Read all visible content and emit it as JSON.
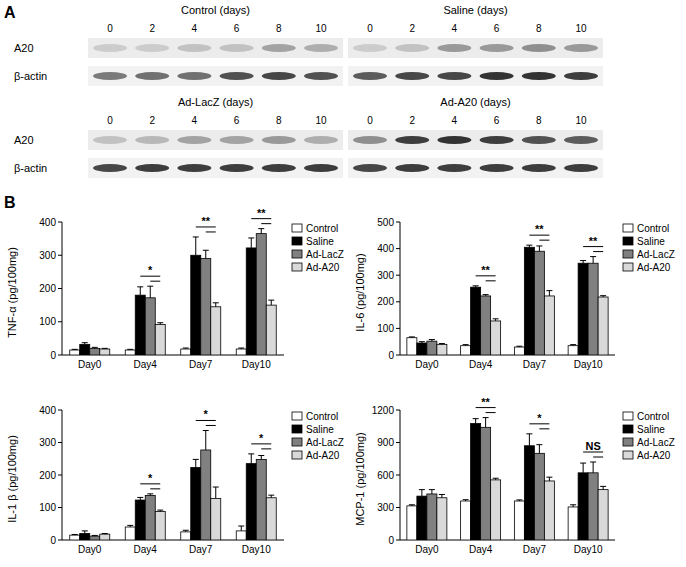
{
  "blots": {
    "panel_label": "A",
    "row_labels": [
      "A20",
      "β-actin"
    ],
    "panels": [
      {
        "title": "Control (days)",
        "days": [
          0,
          2,
          4,
          6,
          8,
          10
        ],
        "intensity": [
          [
            0.15,
            0.15,
            0.2,
            0.2,
            0.35,
            0.3
          ],
          [
            0.55,
            0.6,
            0.6,
            0.75,
            0.8,
            0.75
          ]
        ]
      },
      {
        "title": "Saline (days)",
        "days": [
          0,
          2,
          4,
          6,
          8,
          10
        ],
        "intensity": [
          [
            0.15,
            0.2,
            0.4,
            0.4,
            0.45,
            0.4
          ],
          [
            0.7,
            0.8,
            0.8,
            0.9,
            0.9,
            0.85
          ]
        ]
      },
      {
        "title": "Ad-LacZ (days)",
        "days": [
          0,
          2,
          4,
          6,
          8,
          10
        ],
        "intensity": [
          [
            0.2,
            0.25,
            0.35,
            0.35,
            0.4,
            0.3
          ],
          [
            0.8,
            0.85,
            0.85,
            0.85,
            0.85,
            0.85
          ]
        ]
      },
      {
        "title": "Ad-A20 (days)",
        "days": [
          0,
          2,
          4,
          6,
          8,
          10
        ],
        "intensity": [
          [
            0.45,
            0.85,
            0.9,
            0.85,
            0.75,
            0.7
          ],
          [
            0.8,
            0.85,
            0.85,
            0.85,
            0.85,
            0.85
          ]
        ]
      }
    ]
  },
  "charts_panel_label": "B",
  "chart_data": [
    {
      "type": "bar",
      "y_label": "TNF-α (pg/100mg)",
      "categories": [
        "Day0",
        "Day4",
        "Day7",
        "Day10"
      ],
      "ylim": [
        0,
        400
      ],
      "yticks": [
        0,
        100,
        200,
        300,
        400
      ],
      "legend": "right",
      "series": [
        {
          "name": "Control",
          "color": "#ffffff",
          "values": [
            15,
            15,
            18,
            18
          ],
          "errors": [
            2,
            2,
            3,
            3
          ]
        },
        {
          "name": "Saline",
          "color": "#000000",
          "values": [
            32,
            180,
            300,
            322
          ],
          "errors": [
            5,
            25,
            55,
            30
          ]
        },
        {
          "name": "Ad-LacZ",
          "color": "#808080",
          "values": [
            20,
            172,
            290,
            365
          ],
          "errors": [
            3,
            35,
            25,
            15
          ]
        },
        {
          "name": "Ad-A20",
          "color": "#d9d9d9",
          "values": [
            18,
            92,
            145,
            150
          ],
          "errors": [
            2,
            5,
            12,
            15
          ]
        }
      ],
      "annotations": [
        {
          "category": "Day4",
          "text": "*"
        },
        {
          "category": "Day7",
          "text": "**"
        },
        {
          "category": "Day10",
          "text": "**"
        }
      ]
    },
    {
      "type": "bar",
      "y_label": "IL-6 (pg/100mg)",
      "categories": [
        "Day0",
        "Day4",
        "Day7",
        "Day10"
      ],
      "ylim": [
        0,
        500
      ],
      "yticks": [
        0,
        100,
        200,
        300,
        400,
        500
      ],
      "legend": "right",
      "series": [
        {
          "name": "Control",
          "color": "#ffffff",
          "values": [
            65,
            35,
            30,
            35
          ],
          "errors": [
            3,
            4,
            3,
            4
          ]
        },
        {
          "name": "Saline",
          "color": "#000000",
          "values": [
            45,
            255,
            405,
            345
          ],
          "errors": [
            5,
            5,
            8,
            10
          ]
        },
        {
          "name": "Ad-LacZ",
          "color": "#808080",
          "values": [
            52,
            222,
            390,
            345
          ],
          "errors": [
            6,
            5,
            20,
            25
          ]
        },
        {
          "name": "Ad-A20",
          "color": "#d9d9d9",
          "values": [
            40,
            128,
            222,
            218
          ],
          "errors": [
            3,
            8,
            20,
            5
          ]
        }
      ],
      "annotations": [
        {
          "category": "Day4",
          "text": "**"
        },
        {
          "category": "Day7",
          "text": "**"
        },
        {
          "category": "Day10",
          "text": "**"
        }
      ]
    },
    {
      "type": "bar",
      "y_label": "IL-1 β (pg/100mg)",
      "categories": [
        "Day0",
        "Day4",
        "Day7",
        "Day10"
      ],
      "ylim": [
        0,
        400
      ],
      "yticks": [
        0,
        100,
        200,
        300,
        400
      ],
      "legend": "right",
      "series": [
        {
          "name": "Control",
          "color": "#ffffff",
          "values": [
            15,
            40,
            25,
            28
          ],
          "errors": [
            2,
            5,
            5,
            15
          ]
        },
        {
          "name": "Saline",
          "color": "#000000",
          "values": [
            20,
            123,
            223,
            235
          ],
          "errors": [
            8,
            8,
            25,
            30
          ]
        },
        {
          "name": "Ad-LacZ",
          "color": "#808080",
          "values": [
            12,
            137,
            277,
            248
          ],
          "errors": [
            2,
            5,
            60,
            12
          ]
        },
        {
          "name": "Ad-A20",
          "color": "#d9d9d9",
          "values": [
            18,
            88,
            128,
            130
          ],
          "errors": [
            2,
            4,
            35,
            8
          ]
        }
      ],
      "annotations": [
        {
          "category": "Day4",
          "text": "*"
        },
        {
          "category": "Day7",
          "text": "*"
        },
        {
          "category": "Day10",
          "text": "*"
        }
      ]
    },
    {
      "type": "bar",
      "y_label": "MCP-1 (pg/100mg)",
      "categories": [
        "Day0",
        "Day4",
        "Day7",
        "Day10"
      ],
      "ylim": [
        0,
        1200
      ],
      "yticks": [
        0,
        300,
        600,
        900,
        1200
      ],
      "legend": "right",
      "series": [
        {
          "name": "Control",
          "color": "#ffffff",
          "values": [
            315,
            360,
            360,
            305
          ],
          "errors": [
            10,
            12,
            10,
            20
          ]
        },
        {
          "name": "Saline",
          "color": "#000000",
          "values": [
            405,
            1075,
            870,
            620
          ],
          "errors": [
            60,
            45,
            110,
            90
          ]
        },
        {
          "name": "Ad-LacZ",
          "color": "#808080",
          "values": [
            425,
            1040,
            800,
            620
          ],
          "errors": [
            40,
            90,
            80,
            100
          ]
        },
        {
          "name": "Ad-A20",
          "color": "#d9d9d9",
          "values": [
            390,
            555,
            545,
            465
          ],
          "errors": [
            30,
            15,
            35,
            30
          ]
        }
      ],
      "annotations": [
        {
          "category": "Day4",
          "text": "**"
        },
        {
          "category": "Day7",
          "text": "*"
        },
        {
          "category": "Day10",
          "text": "NS"
        }
      ]
    }
  ]
}
